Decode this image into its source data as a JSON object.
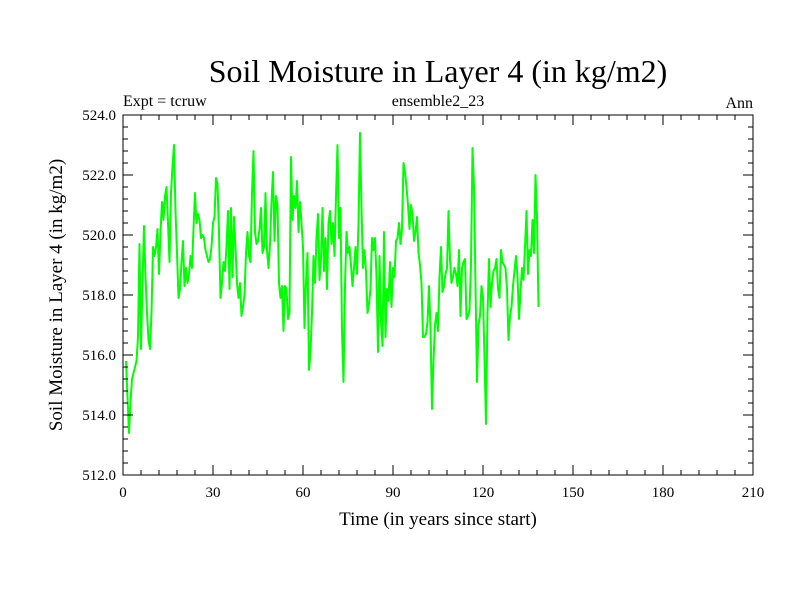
{
  "chart_data": {
    "type": "line",
    "title": "Soil Moisture in Layer 4 (in kg/m2)",
    "subtitle_left": "Expt = tcruw",
    "subtitle_center": "ensemble2_23",
    "subtitle_right": "Ann",
    "xlabel": "Time (in years since start)",
    "ylabel": "Soil Moisture in Layer 4 (in kg/m2)",
    "xlim": [
      0,
      210
    ],
    "ylim": [
      512,
      524
    ],
    "x_ticks": [
      0,
      30,
      60,
      90,
      120,
      150,
      180,
      210
    ],
    "x_tick_labels": [
      "0",
      "30",
      "60",
      "90",
      "120",
      "150",
      "180",
      "210"
    ],
    "y_ticks": [
      512,
      514,
      516,
      518,
      520,
      522,
      524
    ],
    "y_tick_labels": [
      "512.0",
      "514.0",
      "516.0",
      "518.0",
      "520.0",
      "522.0",
      "524.0"
    ],
    "x_minor_step": 6,
    "y_minor_step": 0.4,
    "series": [
      {
        "name": "ensemble2_23",
        "color": "#00ff00",
        "x_start": 1,
        "x_step": 0.5,
        "values": [
          515.8,
          514.6,
          513.4,
          514.4,
          515.2,
          515.4,
          515.6,
          515.8,
          516.6,
          519.7,
          516.2,
          518.4,
          520.3,
          518.6,
          517.4,
          516.5,
          516.2,
          517.4,
          519.6,
          519.3,
          519.6,
          520.2,
          518.7,
          520.1,
          521.1,
          520.5,
          521.3,
          521.6,
          520.4,
          519.1,
          521.4,
          522.3,
          523.0,
          520.8,
          519.4,
          517.9,
          518.2,
          519.1,
          519.8,
          518.3,
          518.9,
          518.4,
          518.7,
          519.3,
          518.9,
          520.2,
          521.4,
          520.4,
          520.7,
          520.5,
          519.9,
          520.0,
          519.9,
          519.5,
          519.3,
          519.1,
          519.2,
          519.6,
          520.4,
          520.6,
          521.9,
          521.7,
          520.1,
          517.9,
          518.4,
          519.1,
          518.8,
          519.6,
          520.8,
          518.2,
          520.9,
          518.6,
          520.6,
          519.6,
          518.4,
          517.9,
          518.4,
          517.3,
          517.6,
          518.0,
          519.4,
          520.1,
          519.3,
          519.1,
          521.4,
          522.8,
          520.1,
          519.7,
          519.8,
          520.2,
          520.9,
          519.4,
          519.6,
          521.4,
          519.5,
          518.9,
          519.7,
          521.1,
          522.1,
          519.8,
          521.3,
          521.0,
          518.4,
          517.9,
          518.3,
          516.8,
          518.3,
          518.2,
          517.2,
          517.4,
          522.6,
          520.5,
          521.3,
          520.9,
          521.8,
          520.1,
          521.1,
          520.4,
          519.6,
          516.9,
          518.4,
          519.4,
          515.5,
          516.1,
          517.4,
          519.3,
          518.4,
          519.9,
          520.7,
          518.5,
          519.2,
          520.9,
          518.8,
          519.9,
          518.2,
          520.4,
          520.8,
          519.7,
          520.4,
          519.3,
          521.3,
          523.0,
          519.9,
          520.9,
          516.8,
          515.1,
          518.3,
          520.1,
          519.4,
          519.6,
          519.0,
          518.3,
          518.9,
          519.6,
          518.7,
          520.4,
          523.4,
          520.9,
          518.9,
          519.5,
          518.8,
          517.4,
          517.7,
          518.2,
          519.9,
          519.5,
          519.9,
          518.6,
          516.1,
          519.3,
          517.1,
          516.3,
          520.1,
          516.6,
          518.2,
          517.8,
          519.1,
          517.6,
          518.9,
          518.6,
          519.8,
          519.9,
          520.4,
          519.7,
          520.2,
          522.4,
          522.1,
          521.6,
          521.0,
          520.2,
          521.0,
          520.7,
          519.8,
          520.1,
          520.6,
          519.4,
          519.0,
          518.4,
          516.6,
          516.6,
          516.7,
          517.1,
          518.3,
          516.9,
          514.2,
          515.8,
          517.0,
          517.4,
          516.8,
          518.6,
          519.6,
          518.1,
          518.3,
          518.7,
          518.9,
          520.8,
          519.2,
          518.4,
          518.6,
          518.9,
          518.7,
          518.3,
          519.5,
          517.3,
          518.9,
          519.1,
          519.2,
          517.2,
          517.3,
          517.5,
          519.0,
          522.9,
          521.6,
          518.3,
          515.1,
          517.0,
          517.3,
          518.3,
          517.9,
          515.9,
          513.7,
          517.4,
          519.2,
          517.6,
          518.4,
          518.8,
          518.9,
          519.2,
          518.2,
          517.9,
          519.5,
          519.1,
          519.0,
          518.9,
          518.2,
          516.5,
          517.3,
          517.6,
          518.3,
          518.8,
          519.3,
          518.6,
          517.2,
          518.1,
          518.9,
          518.5,
          519.6,
          520.8,
          518.7,
          519.5,
          519.3,
          520.5,
          519.4,
          522.0,
          520.6,
          517.6
        ]
      }
    ]
  }
}
